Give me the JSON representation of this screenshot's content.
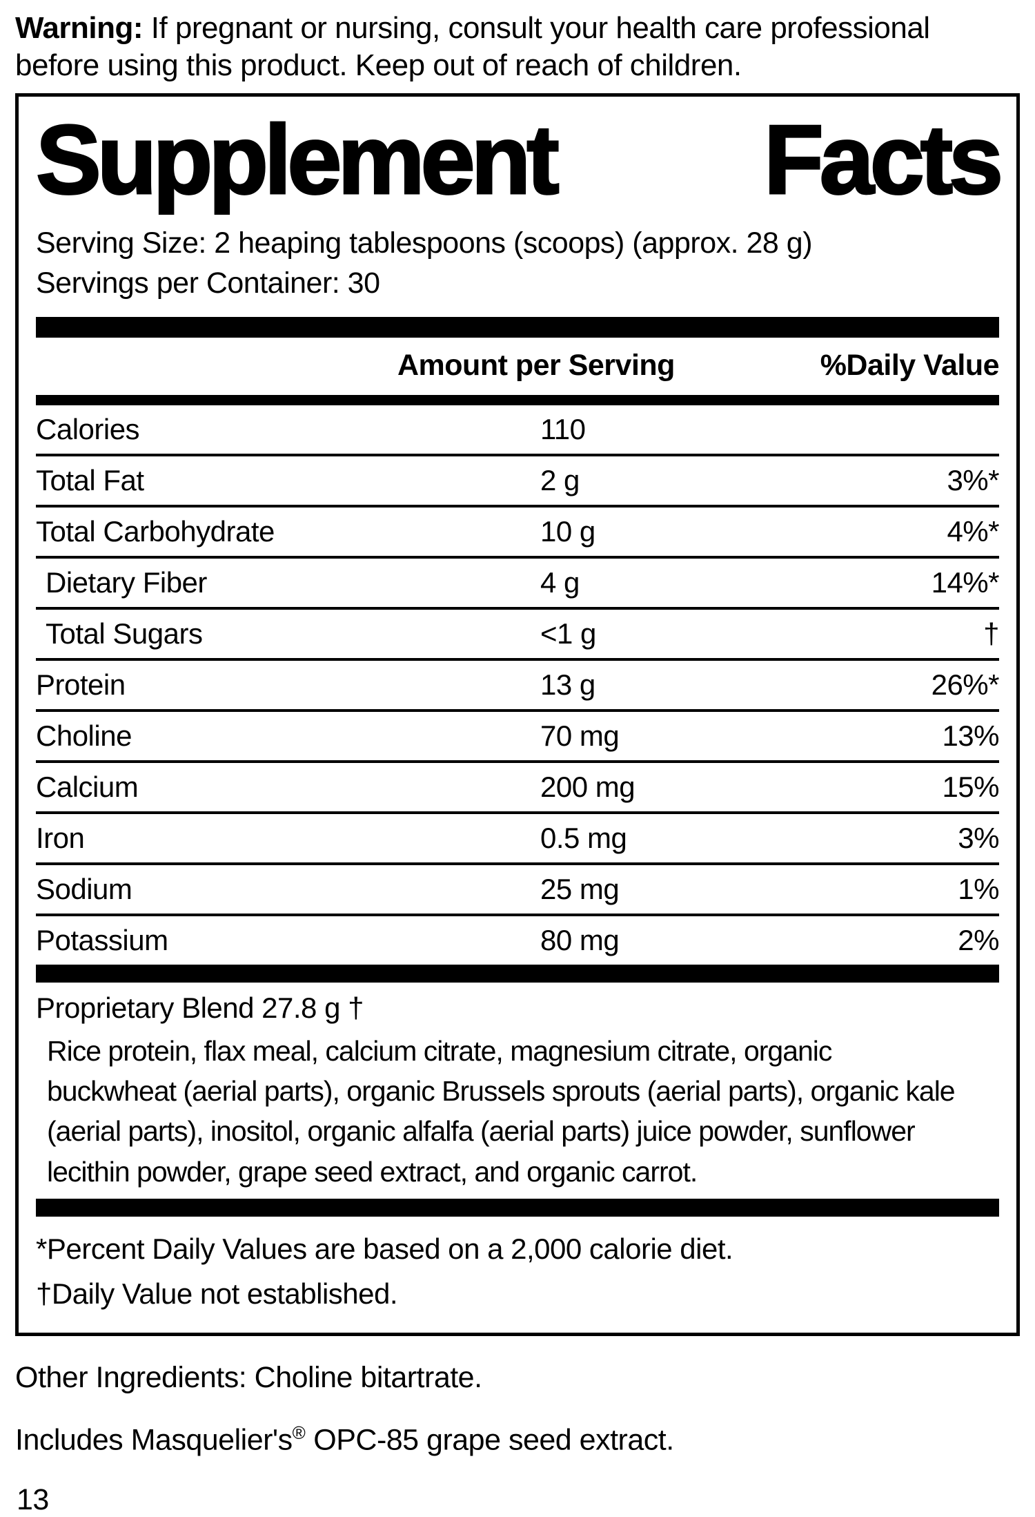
{
  "warning": {
    "label": "Warning:",
    "text": "If pregnant or nursing, consult your health care professional\nbefore using this product. Keep out of reach of children."
  },
  "panel": {
    "title_word1": "Supplement",
    "title_word2": "Facts",
    "serving_size": "Serving Size: 2 heaping tablespoons (scoops) (approx. 28 g)",
    "servings_per_container": "Servings per Container: 30",
    "columns": {
      "amount": "Amount per Serving",
      "daily_value": "%Daily Value"
    },
    "rows": [
      {
        "label": "Calories",
        "amount": "110",
        "dv": ""
      },
      {
        "label": "Total Fat",
        "amount": "2 g",
        "dv": "3%*"
      },
      {
        "label": "Total Carbohydrate",
        "amount": "10 g",
        "dv": "4%*"
      },
      {
        "label": "Dietary Fiber",
        "amount": "4 g",
        "dv": "14%*"
      },
      {
        "label": "Total Sugars",
        "amount": "<1 g",
        "dv": "†"
      },
      {
        "label": "Protein",
        "amount": "13 g",
        "dv": "26%*"
      },
      {
        "label": "Choline",
        "amount": "70 mg",
        "dv": "13%"
      },
      {
        "label": "Calcium",
        "amount": "200 mg",
        "dv": "15%"
      },
      {
        "label": "Iron",
        "amount": "0.5 mg",
        "dv": "3%"
      },
      {
        "label": "Sodium",
        "amount": "25 mg",
        "dv": "1%"
      },
      {
        "label": "Potassium",
        "amount": "80 mg",
        "dv": "2%"
      }
    ],
    "blend": {
      "label": "Proprietary Blend",
      "amount": "27.8 g",
      "dv": "†",
      "description": "Rice protein, flax meal, calcium citrate, magnesium citrate, organic\nbuckwheat (aerial parts), organic Brussels sprouts (aerial parts), organic kale\n(aerial parts), inositol, organic alfalfa (aerial parts) juice powder, sunflower\nlecithin powder, grape seed extract, and organic carrot."
    },
    "footnotes": "*Percent Daily Values are based on a 2,000 calorie diet.\n†Daily Value not established."
  },
  "other_ingredients": "Other Ingredients: Choline bitartrate.",
  "includes": {
    "prefix": "Includes Masquelier's",
    "registered": "®",
    "suffix": " OPC-85 grape seed extract."
  },
  "page_number": "13",
  "colors": {
    "ink": "#000000",
    "paper": "#ffffff"
  }
}
